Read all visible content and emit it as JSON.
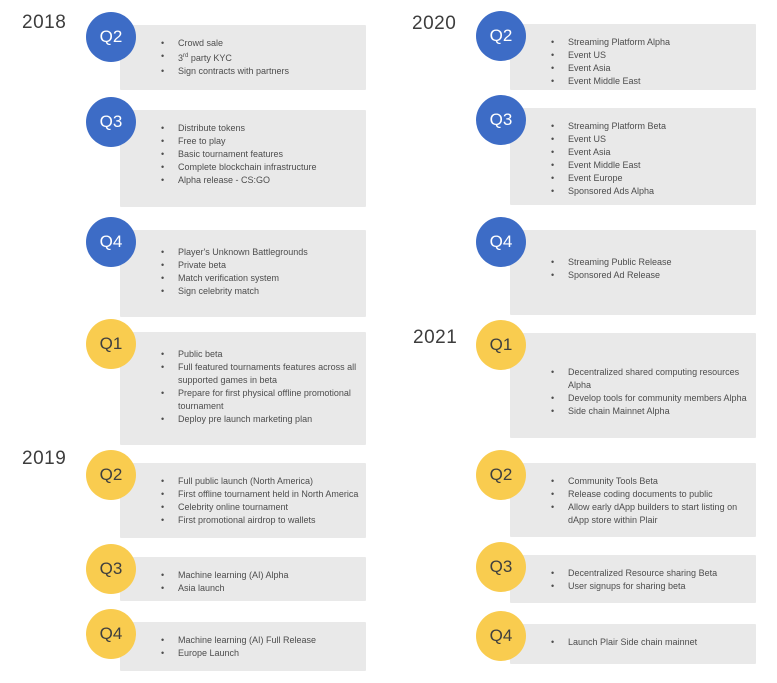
{
  "colors": {
    "page_bg": "#ffffff",
    "blue": "#3d6cc6",
    "yellow": "#f9cc4f",
    "box_bg": "#e9e9e9",
    "year_text": "#3d3d3d",
    "bullet_text": "#4d4d4d",
    "quarter_on_blue": "#ffffff",
    "quarter_on_yellow": "#3f3f3f"
  },
  "years": [
    "2018",
    "2019",
    "2020",
    "2021"
  ],
  "columns": [
    {
      "entries": [
        {
          "year": "2018",
          "quarter": "Q2",
          "badge": "blue",
          "items": [
            "Crowd sale",
            "3rd party KYC",
            "Sign contracts with partners"
          ]
        },
        {
          "year": "2018",
          "quarter": "Q3",
          "badge": "blue",
          "items": [
            "Distribute tokens",
            "Free to play",
            "Basic tournament features",
            "Complete blockchain infrastructure",
            "Alpha release - CS:GO"
          ]
        },
        {
          "year": "2018",
          "quarter": "Q4",
          "badge": "blue",
          "items": [
            "Player's Unknown Battlegrounds",
            "Private beta",
            "Match verification system",
            "Sign celebrity match"
          ]
        },
        {
          "year": "2019",
          "quarter": "Q1",
          "badge": "yellow",
          "items": [
            "Public beta",
            "Full featured tournaments features across all supported games in beta",
            "Prepare for first physical offline promotional tournament",
            "Deploy pre launch marketing plan"
          ]
        },
        {
          "year": "2019",
          "quarter": "Q2",
          "badge": "yellow",
          "items": [
            "Full public launch (North America)",
            "First offline tournament held in North America",
            "Celebrity online tournament",
            "First promotional airdrop to wallets"
          ]
        },
        {
          "year": "2019",
          "quarter": "Q3",
          "badge": "yellow",
          "items": [
            "Machine learning (AI) Alpha",
            "Asia launch"
          ]
        },
        {
          "year": "2019",
          "quarter": "Q4",
          "badge": "yellow",
          "items": [
            "Machine learning (AI) Full Release",
            "Europe Launch"
          ]
        }
      ]
    },
    {
      "entries": [
        {
          "year": "2020",
          "quarter": "Q2",
          "badge": "blue",
          "items": [
            "Streaming Platform Alpha",
            "Event US",
            "Event Asia",
            "Event Middle East"
          ]
        },
        {
          "year": "2020",
          "quarter": "Q3",
          "badge": "blue",
          "items": [
            "Streaming Platform Beta",
            "Event US",
            "Event Asia",
            "Event Middle East",
            "Event Europe",
            "Sponsored Ads Alpha"
          ]
        },
        {
          "year": "2020",
          "quarter": "Q4",
          "badge": "blue",
          "items": [
            "Streaming Public Release",
            "Sponsored Ad Release"
          ]
        },
        {
          "year": "2021",
          "quarter": "Q1",
          "badge": "yellow",
          "items": [
            "Decentralized shared computing resources Alpha",
            "Develop tools for community members Alpha",
            "Side chain Mainnet Alpha"
          ]
        },
        {
          "year": "2021",
          "quarter": "Q2",
          "badge": "yellow",
          "items": [
            "Community Tools Beta",
            "Release coding documents to public",
            "Allow early dApp builders to start listing on dApp store within Plair"
          ]
        },
        {
          "year": "2021",
          "quarter": "Q3",
          "badge": "yellow",
          "items": [
            "Decentralized Resource sharing Beta",
            "User signups for sharing beta"
          ]
        },
        {
          "year": "2021",
          "quarter": "Q4",
          "badge": "yellow",
          "items": [
            "Launch Plair Side chain mainnet"
          ]
        }
      ]
    }
  ]
}
